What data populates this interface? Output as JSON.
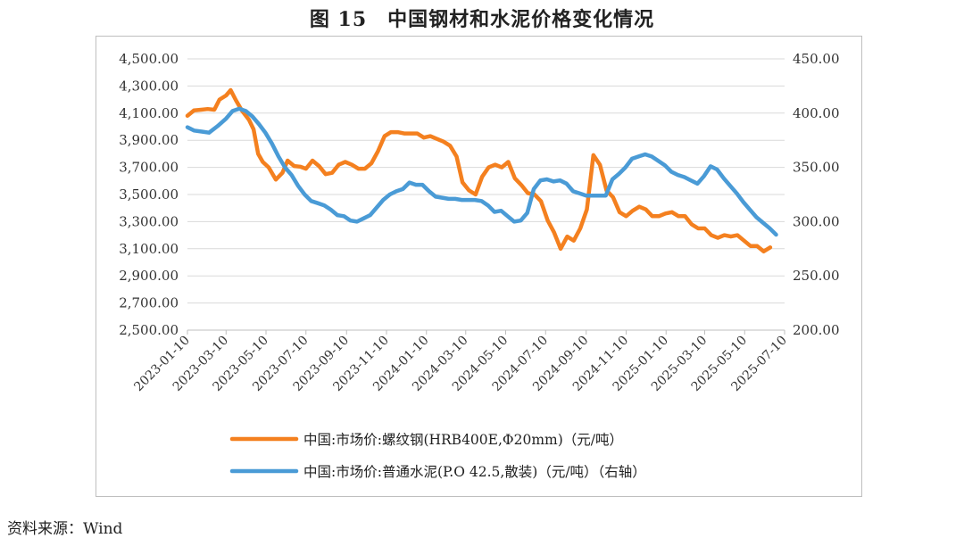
{
  "title": "图 15　中国钢材和水泥价格变化情况",
  "source": "资料来源：Wind",
  "colors": {
    "steel": "#F4801F",
    "cement": "#4A9BD6",
    "grid": "#D9D9D9"
  },
  "chart_data": {
    "type": "line",
    "grid": true,
    "legend_position": "bottom",
    "x_tick_labels": [
      "2023-01-10",
      "2023-03-10",
      "2023-05-10",
      "2023-07-10",
      "2023-09-10",
      "2023-11-10",
      "2024-01-10",
      "2024-03-10",
      "2024-05-10",
      "2024-07-10",
      "2024-09-10",
      "2024-11-10",
      "2025-01-10",
      "2025-03-10",
      "2025-05-10",
      "2025-07-10"
    ],
    "x_range": [
      "2023-01-10",
      "2025-07-10"
    ],
    "y_left": {
      "range": [
        2500,
        4500
      ],
      "tick_labels": [
        "4,500.00",
        "4,300.00",
        "4,100.00",
        "3,900.00",
        "3,700.00",
        "3,500.00",
        "3,300.00",
        "3,100.00",
        "2,900.00",
        "2,700.00",
        "2,500.00"
      ]
    },
    "y_right": {
      "range": [
        200,
        450
      ],
      "tick_labels": [
        "450.00",
        "400.00",
        "350.00",
        "300.00",
        "250.00",
        "200.00"
      ]
    },
    "series": [
      {
        "name": "中国:市场价:螺纹钢(HRB400E,Φ20mm)（元/吨）",
        "axis": "left",
        "points": [
          [
            "2023-01-10",
            4080
          ],
          [
            "2023-01-20",
            4120
          ],
          [
            "2023-01-31",
            4125
          ],
          [
            "2023-02-10",
            4130
          ],
          [
            "2023-02-20",
            4125
          ],
          [
            "2023-02-28",
            4200
          ],
          [
            "2023-03-10",
            4230
          ],
          [
            "2023-03-17",
            4270
          ],
          [
            "2023-03-25",
            4195
          ],
          [
            "2023-04-03",
            4120
          ],
          [
            "2023-04-14",
            4050
          ],
          [
            "2023-04-21",
            3980
          ],
          [
            "2023-04-28",
            3800
          ],
          [
            "2023-05-05",
            3740
          ],
          [
            "2023-05-14",
            3700
          ],
          [
            "2023-05-25",
            3610
          ],
          [
            "2023-06-04",
            3660
          ],
          [
            "2023-06-12",
            3750
          ],
          [
            "2023-06-22",
            3710
          ],
          [
            "2023-07-01",
            3705
          ],
          [
            "2023-07-10",
            3690
          ],
          [
            "2023-07-20",
            3750
          ],
          [
            "2023-07-30",
            3710
          ],
          [
            "2023-08-09",
            3650
          ],
          [
            "2023-08-19",
            3660
          ],
          [
            "2023-08-29",
            3720
          ],
          [
            "2023-09-08",
            3740
          ],
          [
            "2023-09-18",
            3720
          ],
          [
            "2023-09-28",
            3690
          ],
          [
            "2023-10-08",
            3690
          ],
          [
            "2023-10-18",
            3730
          ],
          [
            "2023-10-28",
            3820
          ],
          [
            "2023-11-07",
            3930
          ],
          [
            "2023-11-17",
            3960
          ],
          [
            "2023-11-27",
            3960
          ],
          [
            "2023-12-07",
            3950
          ],
          [
            "2023-12-17",
            3950
          ],
          [
            "2023-12-27",
            3950
          ],
          [
            "2024-01-06",
            3920
          ],
          [
            "2024-01-16",
            3930
          ],
          [
            "2024-01-26",
            3910
          ],
          [
            "2024-02-05",
            3890
          ],
          [
            "2024-02-15",
            3860
          ],
          [
            "2024-02-25",
            3780
          ],
          [
            "2024-03-05",
            3590
          ],
          [
            "2024-03-15",
            3530
          ],
          [
            "2024-03-25",
            3500
          ],
          [
            "2024-04-04",
            3630
          ],
          [
            "2024-04-14",
            3700
          ],
          [
            "2024-04-24",
            3720
          ],
          [
            "2024-05-04",
            3700
          ],
          [
            "2024-05-14",
            3740
          ],
          [
            "2024-05-24",
            3620
          ],
          [
            "2024-06-03",
            3570
          ],
          [
            "2024-06-13",
            3510
          ],
          [
            "2024-06-23",
            3500
          ],
          [
            "2024-07-03",
            3450
          ],
          [
            "2024-07-13",
            3310
          ],
          [
            "2024-07-23",
            3220
          ],
          [
            "2024-08-02",
            3100
          ],
          [
            "2024-08-12",
            3190
          ],
          [
            "2024-08-22",
            3160
          ],
          [
            "2024-09-01",
            3250
          ],
          [
            "2024-09-11",
            3390
          ],
          [
            "2024-09-21",
            3790
          ],
          [
            "2024-10-01",
            3720
          ],
          [
            "2024-10-11",
            3530
          ],
          [
            "2024-10-21",
            3480
          ],
          [
            "2024-10-31",
            3370
          ],
          [
            "2024-11-10",
            3340
          ],
          [
            "2024-11-20",
            3380
          ],
          [
            "2024-11-30",
            3410
          ],
          [
            "2024-12-10",
            3390
          ],
          [
            "2024-12-20",
            3340
          ],
          [
            "2024-12-30",
            3340
          ],
          [
            "2025-01-09",
            3360
          ],
          [
            "2025-01-19",
            3370
          ],
          [
            "2025-01-29",
            3340
          ],
          [
            "2025-02-08",
            3340
          ],
          [
            "2025-02-18",
            3280
          ],
          [
            "2025-02-28",
            3250
          ],
          [
            "2025-03-10",
            3250
          ],
          [
            "2025-03-20",
            3200
          ],
          [
            "2025-03-30",
            3180
          ],
          [
            "2025-04-09",
            3200
          ],
          [
            "2025-04-19",
            3190
          ],
          [
            "2025-04-29",
            3200
          ],
          [
            "2025-05-09",
            3160
          ],
          [
            "2025-05-19",
            3120
          ],
          [
            "2025-05-29",
            3120
          ],
          [
            "2025-06-08",
            3080
          ],
          [
            "2025-06-18",
            3110
          ]
        ]
      },
      {
        "name": "中国:市场价:普通水泥(P.O 42.5,散装)（元/吨）（右轴）",
        "axis": "right",
        "points": [
          [
            "2023-01-10",
            387
          ],
          [
            "2023-01-20",
            384
          ],
          [
            "2023-02-01",
            383
          ],
          [
            "2023-02-12",
            382
          ],
          [
            "2023-02-25",
            388
          ],
          [
            "2023-03-10",
            395
          ],
          [
            "2023-03-20",
            402
          ],
          [
            "2023-03-30",
            404
          ],
          [
            "2023-04-09",
            402
          ],
          [
            "2023-04-19",
            397
          ],
          [
            "2023-04-29",
            390
          ],
          [
            "2023-05-09",
            382
          ],
          [
            "2023-05-19",
            372
          ],
          [
            "2023-05-29",
            360
          ],
          [
            "2023-06-08",
            350
          ],
          [
            "2023-06-18",
            343
          ],
          [
            "2023-06-28",
            333
          ],
          [
            "2023-07-08",
            325
          ],
          [
            "2023-07-18",
            319
          ],
          [
            "2023-07-28",
            317
          ],
          [
            "2023-08-07",
            315
          ],
          [
            "2023-08-17",
            311
          ],
          [
            "2023-08-27",
            306
          ],
          [
            "2023-09-06",
            305
          ],
          [
            "2023-09-16",
            301
          ],
          [
            "2023-09-26",
            300
          ],
          [
            "2023-10-06",
            303
          ],
          [
            "2023-10-16",
            306
          ],
          [
            "2023-10-26",
            313
          ],
          [
            "2023-11-05",
            320
          ],
          [
            "2023-11-15",
            325
          ],
          [
            "2023-11-25",
            328
          ],
          [
            "2023-12-05",
            330
          ],
          [
            "2023-12-15",
            336
          ],
          [
            "2023-12-25",
            334
          ],
          [
            "2024-01-04",
            334
          ],
          [
            "2024-01-14",
            328
          ],
          [
            "2024-01-24",
            323
          ],
          [
            "2024-02-03",
            322
          ],
          [
            "2024-02-13",
            321
          ],
          [
            "2024-02-23",
            321
          ],
          [
            "2024-03-04",
            320
          ],
          [
            "2024-03-14",
            320
          ],
          [
            "2024-03-24",
            320
          ],
          [
            "2024-04-03",
            319
          ],
          [
            "2024-04-13",
            315
          ],
          [
            "2024-04-23",
            309
          ],
          [
            "2024-05-03",
            310
          ],
          [
            "2024-05-13",
            305
          ],
          [
            "2024-05-23",
            300
          ],
          [
            "2024-06-02",
            301
          ],
          [
            "2024-06-12",
            308
          ],
          [
            "2024-06-22",
            330
          ],
          [
            "2024-07-02",
            338
          ],
          [
            "2024-07-12",
            339
          ],
          [
            "2024-07-22",
            337
          ],
          [
            "2024-08-01",
            338
          ],
          [
            "2024-08-11",
            335
          ],
          [
            "2024-08-21",
            328
          ],
          [
            "2024-08-31",
            326
          ],
          [
            "2024-09-10",
            324
          ],
          [
            "2024-09-20",
            324
          ],
          [
            "2024-09-30",
            324
          ],
          [
            "2024-10-10",
            324
          ],
          [
            "2024-10-20",
            339
          ],
          [
            "2024-10-30",
            344
          ],
          [
            "2024-11-09",
            350
          ],
          [
            "2024-11-19",
            358
          ],
          [
            "2024-11-29",
            360
          ],
          [
            "2024-12-09",
            362
          ],
          [
            "2024-12-19",
            360
          ],
          [
            "2024-12-29",
            356
          ],
          [
            "2025-01-08",
            352
          ],
          [
            "2025-01-18",
            346
          ],
          [
            "2025-01-28",
            343
          ],
          [
            "2025-02-07",
            341
          ],
          [
            "2025-02-17",
            338
          ],
          [
            "2025-02-27",
            335
          ],
          [
            "2025-03-09",
            342
          ],
          [
            "2025-03-19",
            351
          ],
          [
            "2025-03-29",
            348
          ],
          [
            "2025-04-08",
            340
          ],
          [
            "2025-04-18",
            333
          ],
          [
            "2025-04-28",
            326
          ],
          [
            "2025-05-08",
            318
          ],
          [
            "2025-05-18",
            311
          ],
          [
            "2025-05-28",
            304
          ],
          [
            "2025-06-07",
            299
          ],
          [
            "2025-06-17",
            294
          ],
          [
            "2025-06-27",
            288
          ]
        ]
      }
    ]
  }
}
